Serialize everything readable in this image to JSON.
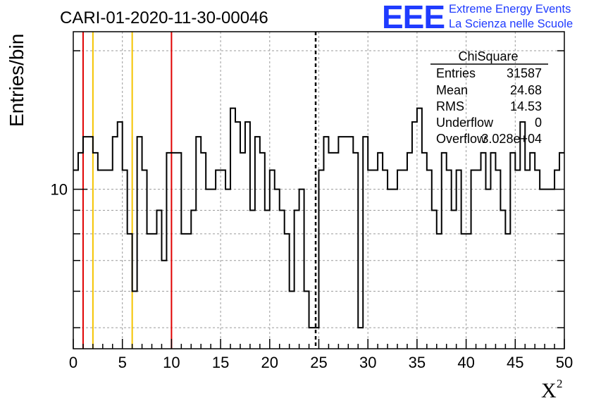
{
  "colors": {
    "marker_red": "#e00000",
    "marker_yellow": "#f5c400",
    "logo_blue": "#1f3bff",
    "grid": "#9a9a9a",
    "histogram": "#000000"
  },
  "logo": {
    "mark": "EEE",
    "line1": "Extreme Energy Events",
    "line2": "La Scienza nelle Scuole"
  },
  "stats": {
    "title": "ChiSquare",
    "rows": [
      {
        "label": "Entries",
        "value": "31587"
      },
      {
        "label": "Mean",
        "value": "24.68"
      },
      {
        "label": "RMS",
        "value": "14.53"
      },
      {
        "label": "Underflow",
        "value": "0"
      },
      {
        "label": "Overflow",
        "value": "3.028e+04"
      }
    ]
  },
  "chart_data": {
    "type": "histogram",
    "title": "CARI-01-2020-11-30-00046",
    "xlabel": "X",
    "xlabel_superscript": "2",
    "ylabel": "Entries/bin",
    "xlim": [
      0,
      50
    ],
    "ylim": [
      4.5,
      22
    ],
    "y_scale": "log",
    "grid": true,
    "x_ticks": [
      0,
      5,
      10,
      15,
      20,
      25,
      30,
      35,
      40,
      45,
      50
    ],
    "y_tick_labels": [
      {
        "value": 10,
        "label": "10"
      }
    ],
    "bin_width": 0.5,
    "bin_start": 0,
    "values": [
      11,
      12,
      13,
      13,
      12,
      11,
      11,
      11,
      13,
      14,
      11,
      8,
      6,
      13,
      11,
      8,
      8,
      9,
      7,
      12,
      12,
      12,
      8,
      8,
      9,
      13,
      12,
      10,
      10,
      11,
      11,
      10,
      15,
      14,
      12,
      14,
      9,
      13,
      12,
      9,
      11,
      10,
      9,
      8,
      6,
      9,
      10,
      6,
      5,
      5,
      11,
      13,
      12,
      12,
      13,
      13,
      13,
      12,
      5,
      13,
      11,
      11,
      12,
      11,
      10,
      10,
      11,
      11,
      12,
      14,
      15,
      12,
      11,
      9,
      8,
      12,
      11,
      9,
      11,
      8,
      8,
      11,
      11,
      12,
      10,
      12,
      11,
      9,
      8,
      12,
      11,
      14,
      11,
      12,
      11,
      10,
      10,
      10,
      11,
      12
    ]
  },
  "markers": [
    {
      "x": 1,
      "color": "red"
    },
    {
      "x": 2,
      "color": "yellow"
    },
    {
      "x": 6,
      "color": "yellow"
    },
    {
      "x": 10,
      "color": "red"
    },
    {
      "x": 24.68,
      "color": "black",
      "style": "dashed"
    }
  ]
}
